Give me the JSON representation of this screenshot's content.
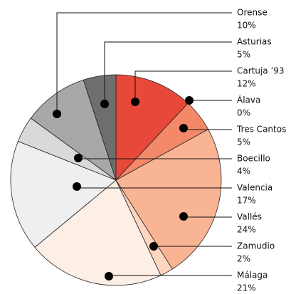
{
  "chart_data": {
    "type": "pie",
    "categories": [
      "Cartuja ’93",
      "Álava",
      "Tres Cantos",
      "Vallés",
      "Zamudio",
      "Málaga",
      "Valencia",
      "Boecillo",
      "Orense",
      "Asturias"
    ],
    "values": [
      12,
      0,
      5,
      24,
      2,
      21,
      17,
      4,
      10,
      5
    ],
    "value_labels": [
      "12%",
      "0%",
      "5%",
      "24%",
      "2%",
      "21%",
      "17%",
      "4%",
      "10%",
      "5%"
    ],
    "colors": [
      "#e8483a",
      "#f06a4f",
      "#f4896a",
      "#f9b494",
      "#fdd5c0",
      "#fdeee6",
      "#efeef0",
      "#d9d9d9",
      "#a8a8a8",
      "#6e6e6e"
    ]
  }
}
